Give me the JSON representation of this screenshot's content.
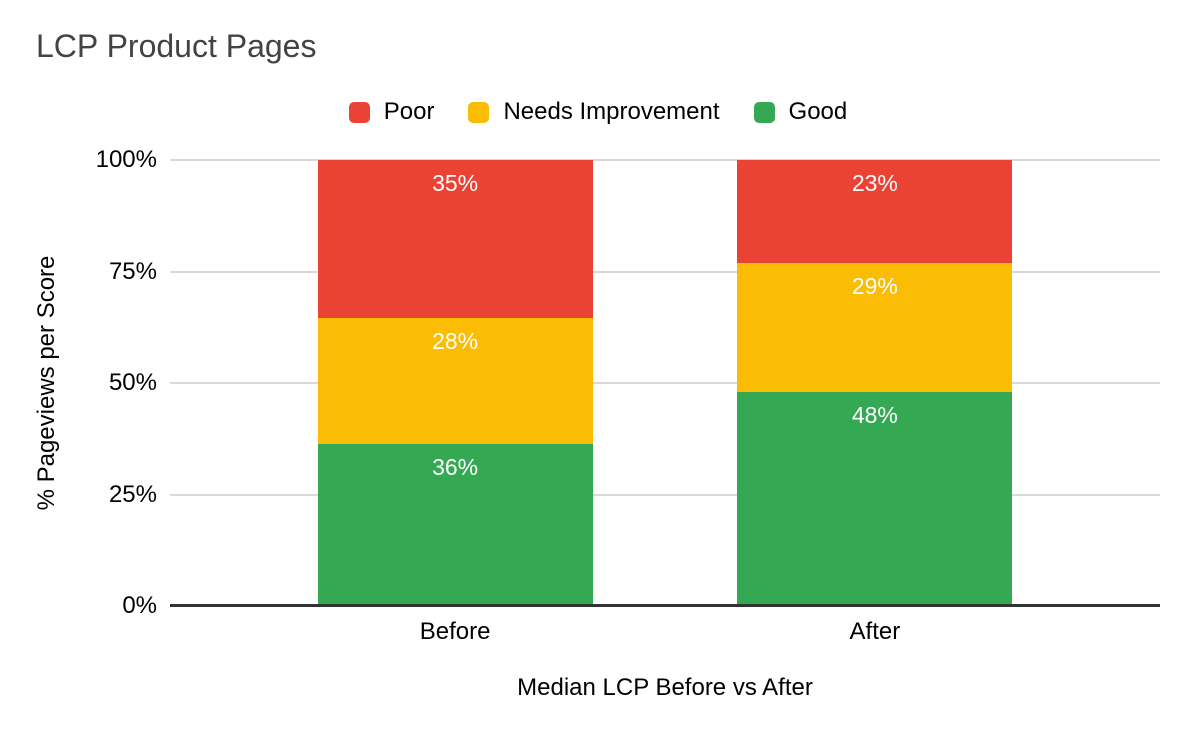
{
  "chart_data": {
    "type": "bar",
    "stacked": true,
    "normalized_to_100": true,
    "title": "LCP Product Pages",
    "xlabel": "Median LCP Before vs After",
    "ylabel": "% Pageviews per Score",
    "categories": [
      "Before",
      "After"
    ],
    "series": [
      {
        "name": "Poor",
        "color": "#EA4335",
        "values": [
          35,
          23
        ]
      },
      {
        "name": "Needs Improvement",
        "color": "#FBBC04",
        "values": [
          28,
          29
        ]
      },
      {
        "name": "Good",
        "color": "#34A853",
        "values": [
          36,
          48
        ]
      }
    ],
    "value_suffix": "%",
    "yticks": [
      "0%",
      "25%",
      "50%",
      "75%",
      "100%"
    ],
    "ylim": [
      0,
      100
    ],
    "grid": true,
    "legend_position": "top",
    "colors": {
      "title_text": "#434343",
      "axis_text": "#000000",
      "bar_label_text": "#ffffff",
      "gridline": "#d9d9d9",
      "baseline": "#333333",
      "background": "#ffffff"
    }
  }
}
